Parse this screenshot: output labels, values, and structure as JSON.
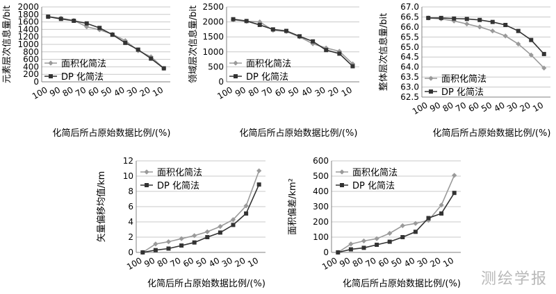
{
  "watermark": "测绘学报",
  "chart_data": [
    {
      "type": "line",
      "x": [
        100,
        90,
        80,
        70,
        60,
        50,
        40,
        30,
        20,
        10
      ],
      "xlabel": "化简后所占原始数据比例/(%)",
      "ylabel": "元素层次信息量/bit",
      "ylim": [
        0,
        2000
      ],
      "yticks": [
        0,
        200,
        400,
        600,
        800,
        1000,
        1200,
        1400,
        1600,
        1800,
        2000
      ],
      "grid": true,
      "legend": "lower-left",
      "series": [
        {
          "name": "面积化简法",
          "marker": "diamond",
          "color": "#9a9a9a",
          "values": [
            1740,
            1700,
            1640,
            1470,
            1390,
            1270,
            1100,
            830,
            670,
            360
          ]
        },
        {
          "name": "DP 化简法",
          "marker": "square",
          "color": "#333333",
          "values": [
            1740,
            1680,
            1630,
            1560,
            1440,
            1260,
            1040,
            860,
            620,
            360
          ]
        }
      ]
    },
    {
      "type": "line",
      "x": [
        100,
        90,
        80,
        70,
        60,
        50,
        40,
        30,
        20,
        10
      ],
      "xlabel": "化简后所占原始数据比例/(%)",
      "ylabel": "领域层次信息量/bit",
      "ylim": [
        0,
        2500
      ],
      "yticks": [
        0,
        500,
        1000,
        1500,
        2000,
        2500
      ],
      "grid": true,
      "legend": "lower-left",
      "series": [
        {
          "name": "面积化简法",
          "marker": "diamond",
          "color": "#9a9a9a",
          "values": [
            2070,
            2020,
            2000,
            1720,
            1680,
            1500,
            1270,
            1130,
            1020,
            600
          ]
        },
        {
          "name": "DP 化简法",
          "marker": "square",
          "color": "#333333",
          "values": [
            2090,
            2030,
            1900,
            1750,
            1700,
            1520,
            1350,
            1060,
            940,
            520
          ]
        }
      ]
    },
    {
      "type": "line",
      "x": [
        100,
        90,
        80,
        70,
        60,
        50,
        40,
        30,
        20,
        10
      ],
      "xlabel": "化简后所占原始数据比例/(%)",
      "ylabel": "整体层次信息量/bit",
      "ylim": [
        62.5,
        67.0
      ],
      "yticks": [
        62.5,
        63.0,
        63.5,
        64.0,
        64.5,
        65.0,
        65.5,
        66.0,
        66.5,
        67.0
      ],
      "grid": true,
      "legend": "lower-left",
      "series": [
        {
          "name": "面积化简法",
          "marker": "diamond",
          "color": "#9a9a9a",
          "values": [
            66.45,
            66.4,
            66.3,
            66.15,
            66.0,
            65.8,
            65.55,
            65.15,
            64.6,
            63.95
          ]
        },
        {
          "name": "DP 化简法",
          "marker": "square",
          "color": "#333333",
          "values": [
            66.45,
            66.45,
            66.42,
            66.4,
            66.35,
            66.25,
            66.1,
            65.8,
            65.35,
            64.65
          ]
        }
      ]
    },
    {
      "type": "line",
      "x": [
        100,
        90,
        80,
        70,
        60,
        50,
        40,
        30,
        20,
        10
      ],
      "xlabel": "化简后所占原始数据比例/(%)",
      "ylabel": "矢量偏移均值/km",
      "ylim": [
        0,
        12
      ],
      "yticks": [
        0,
        2,
        4,
        6,
        8,
        10,
        12
      ],
      "grid": true,
      "legend": "top-left",
      "series": [
        {
          "name": "面积化简法",
          "marker": "diamond",
          "color": "#9a9a9a",
          "values": [
            0,
            1.1,
            1.4,
            1.8,
            2.2,
            2.7,
            3.4,
            4.3,
            6.1,
            10.7
          ]
        },
        {
          "name": "DP 化简法",
          "marker": "square",
          "color": "#333333",
          "values": [
            0,
            0.3,
            0.5,
            0.9,
            1.3,
            2.0,
            2.6,
            3.6,
            5.1,
            8.9
          ]
        }
      ]
    },
    {
      "type": "line",
      "x": [
        100,
        90,
        80,
        70,
        60,
        50,
        40,
        30,
        20,
        10
      ],
      "xlabel": "化简后所占原始数据比例/(%)",
      "ylabel": "面积偏差/km²",
      "ylim": [
        0,
        600
      ],
      "yticks": [
        0,
        100,
        200,
        300,
        400,
        500,
        600
      ],
      "grid": true,
      "legend": "top-left",
      "series": [
        {
          "name": "面积化简法",
          "marker": "diamond",
          "color": "#9a9a9a",
          "values": [
            0,
            55,
            75,
            90,
            125,
            175,
            190,
            210,
            310,
            505
          ]
        },
        {
          "name": "DP 化简法",
          "marker": "square",
          "color": "#333333",
          "values": [
            0,
            20,
            30,
            50,
            70,
            100,
            135,
            225,
            255,
            390
          ]
        }
      ]
    }
  ]
}
